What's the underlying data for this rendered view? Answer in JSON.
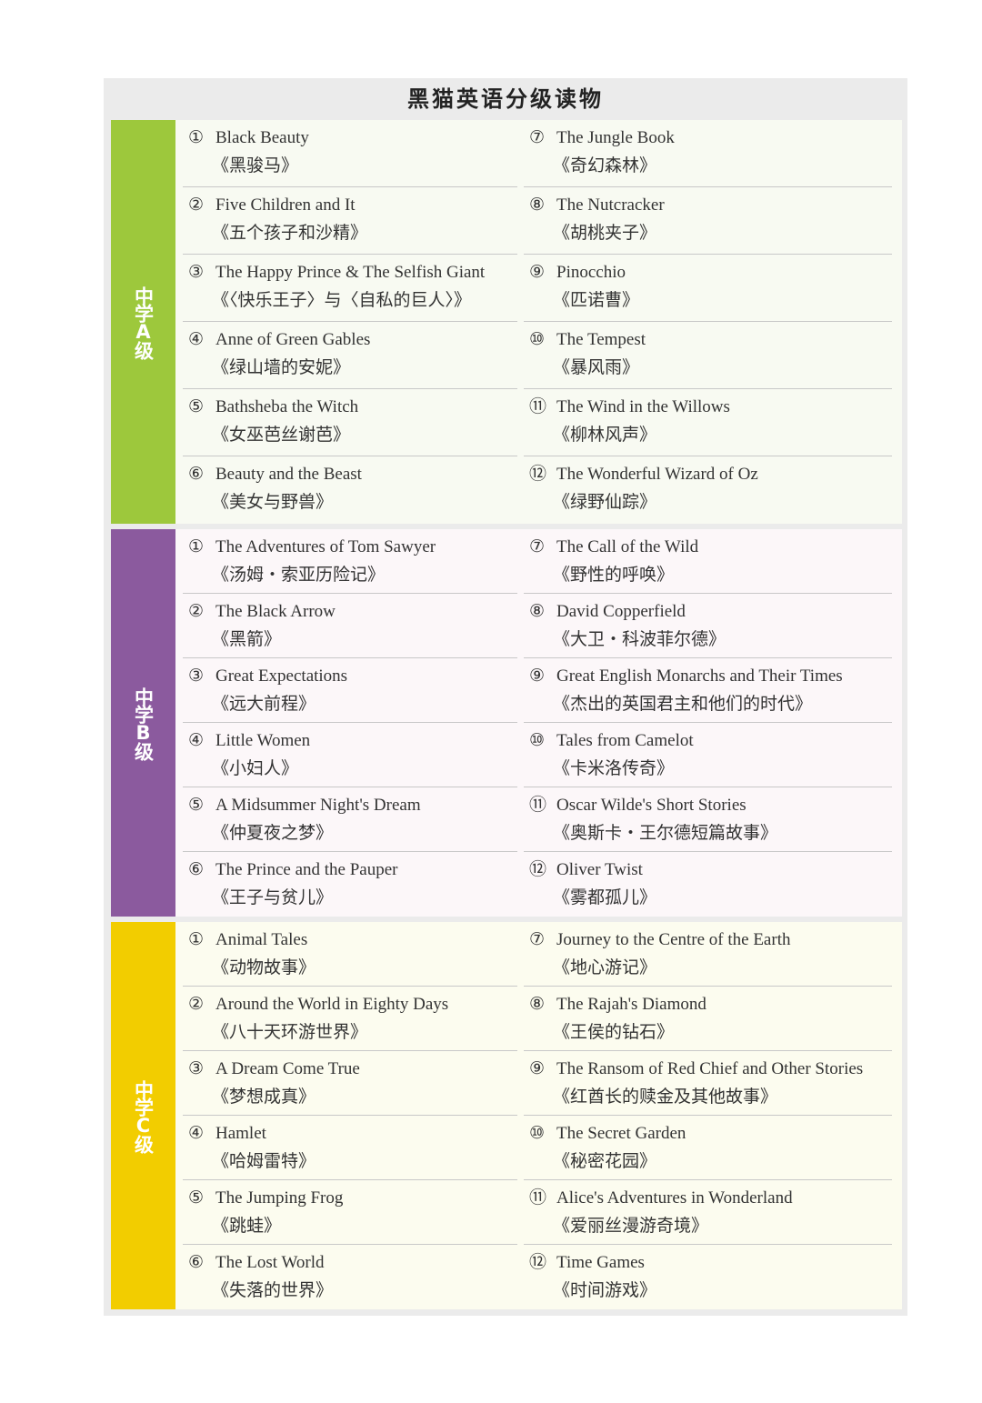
{
  "title": "黑猫英语分级读物",
  "colors": {
    "A": "#9dc83c",
    "B": "#8b5a9e",
    "C": "#f2cd00",
    "A_bg": "#f8faf2",
    "B_bg": "#fcf7f9",
    "C_bg": "#fcfcef"
  },
  "sections": [
    {
      "label": "中学A级",
      "left": [
        {
          "num": "①",
          "en": "Black Beauty",
          "cn": "《黑骏马》"
        },
        {
          "num": "②",
          "en": "Five Children and It",
          "cn": "《五个孩子和沙精》"
        },
        {
          "num": "③",
          "en": "The Happy Prince & The Selfish Giant",
          "cn": "《〈快乐王子〉与〈自私的巨人〉》"
        },
        {
          "num": "④",
          "en": "Anne of Green Gables",
          "cn": "《绿山墙的安妮》"
        },
        {
          "num": "⑤",
          "en": "Bathsheba the Witch",
          "cn": "《女巫芭丝谢芭》"
        },
        {
          "num": "⑥",
          "en": "Beauty and the Beast",
          "cn": "《美女与野兽》"
        }
      ],
      "right": [
        {
          "num": "⑦",
          "en": "The Jungle Book",
          "cn": "《奇幻森林》"
        },
        {
          "num": "⑧",
          "en": "The Nutcracker",
          "cn": "《胡桃夹子》"
        },
        {
          "num": "⑨",
          "en": "Pinocchio",
          "cn": "《匹诺曹》"
        },
        {
          "num": "⑩",
          "en": "The Tempest",
          "cn": "《暴风雨》"
        },
        {
          "num": "⑪",
          "en": "The Wind in the Willows",
          "cn": "《柳林风声》"
        },
        {
          "num": "⑫",
          "en": "The Wonderful Wizard of Oz",
          "cn": "《绿野仙踪》"
        }
      ]
    },
    {
      "label": "中学B级",
      "left": [
        {
          "num": "①",
          "en": "The Adventures of Tom Sawyer",
          "cn": "《汤姆・索亚历险记》"
        },
        {
          "num": "②",
          "en": "The Black Arrow",
          "cn": "《黑箭》"
        },
        {
          "num": "③",
          "en": "Great Expectations",
          "cn": "《远大前程》"
        },
        {
          "num": "④",
          "en": "Little Women",
          "cn": "《小妇人》"
        },
        {
          "num": "⑤",
          "en": "A Midsummer Night's Dream",
          "cn": "《仲夏夜之梦》"
        },
        {
          "num": "⑥",
          "en": "The Prince and the Pauper",
          "cn": "《王子与贫儿》"
        }
      ],
      "right": [
        {
          "num": "⑦",
          "en": "The Call of the Wild",
          "cn": "《野性的呼唤》"
        },
        {
          "num": "⑧",
          "en": "David Copperfield",
          "cn": "《大卫・科波菲尔德》"
        },
        {
          "num": "⑨",
          "en": "Great English Monarchs and Their Times",
          "cn": "《杰出的英国君主和他们的时代》"
        },
        {
          "num": "⑩",
          "en": "Tales from Camelot",
          "cn": "《卡米洛传奇》"
        },
        {
          "num": "⑪",
          "en": "Oscar Wilde's Short Stories",
          "cn": "《奥斯卡・王尔德短篇故事》"
        },
        {
          "num": "⑫",
          "en": "Oliver Twist",
          "cn": "《雾都孤儿》"
        }
      ]
    },
    {
      "label": "中学C级",
      "left": [
        {
          "num": "①",
          "en": "Animal Tales",
          "cn": "《动物故事》"
        },
        {
          "num": "②",
          "en": "Around the World in Eighty Days",
          "cn": "《八十天环游世界》"
        },
        {
          "num": "③",
          "en": "A Dream Come True",
          "cn": "《梦想成真》"
        },
        {
          "num": "④",
          "en": "Hamlet",
          "cn": "《哈姆雷特》"
        },
        {
          "num": "⑤",
          "en": "The Jumping Frog",
          "cn": "《跳蛙》"
        },
        {
          "num": "⑥",
          "en": "The Lost World",
          "cn": "《失落的世界》"
        }
      ],
      "right": [
        {
          "num": "⑦",
          "en": "Journey to the Centre of the Earth",
          "cn": "《地心游记》"
        },
        {
          "num": "⑧",
          "en": "The Rajah's Diamond",
          "cn": "《王侯的钻石》"
        },
        {
          "num": "⑨",
          "en": "The Ransom of Red Chief and Other Stories",
          "cn": "《红酋长的赎金及其他故事》"
        },
        {
          "num": "⑩",
          "en": "The Secret Garden",
          "cn": "《秘密花园》"
        },
        {
          "num": "⑪",
          "en": "Alice's Adventures in Wonderland",
          "cn": "《爱丽丝漫游奇境》"
        },
        {
          "num": "⑫",
          "en": "Time Games",
          "cn": "《时间游戏》"
        }
      ]
    }
  ]
}
